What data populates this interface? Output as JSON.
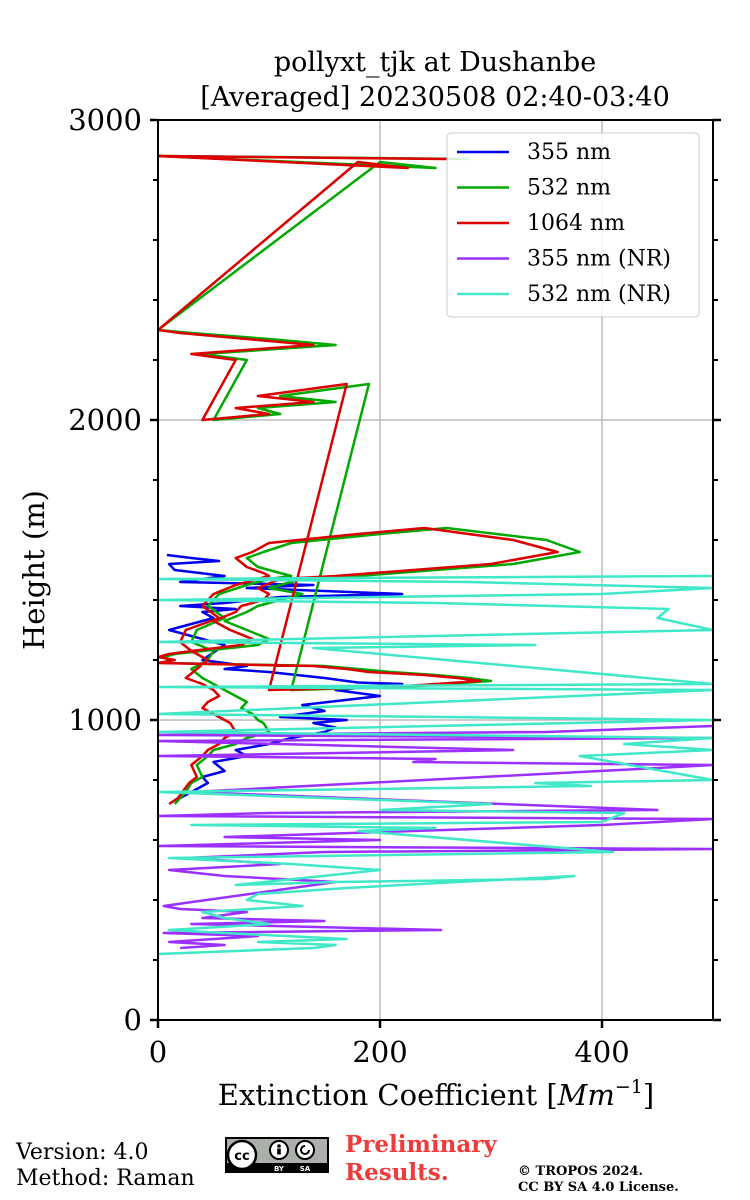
{
  "chart_data": {
    "type": "line",
    "title": [
      "pollyxt_tjk at Dushanbe",
      "[Averaged] 20230508 02:40-03:40"
    ],
    "xlabel": "Extinction Coefficient [$Mm^{-1}$]",
    "xlabel_parts": {
      "prefix": "Extinction Coefficient [",
      "var": "Mm",
      "sup": "−1",
      "suffix": "]"
    },
    "ylabel": "Height (m)",
    "xlim": [
      0,
      500
    ],
    "ylim": [
      0,
      3000
    ],
    "xticks": [
      0,
      200,
      400
    ],
    "yticks": [
      0,
      1000,
      2000,
      3000
    ],
    "grid": true,
    "legend_placement": "top-right",
    "series": [
      {
        "name": "355 nm",
        "color": "#0000ee",
        "x": [
          20,
          30,
          45,
          40,
          60,
          50,
          80,
          70,
          100,
          120,
          150,
          160,
          140,
          170,
          110,
          150,
          130,
          200,
          160,
          220,
          180,
          150,
          100,
          60,
          80,
          40,
          60,
          10,
          50,
          40,
          70,
          20,
          60,
          110,
          220,
          80,
          140,
          20,
          60,
          15,
          10,
          55,
          30,
          8
        ],
        "y": [
          740,
          760,
          790,
          810,
          830,
          860,
          880,
          900,
          920,
          940,
          960,
          975,
          990,
          1000,
          1010,
          1030,
          1050,
          1080,
          1100,
          1120,
          1125,
          1140,
          1160,
          1170,
          1180,
          1200,
          1250,
          1300,
          1340,
          1360,
          1370,
          1380,
          1390,
          1410,
          1420,
          1440,
          1450,
          1460,
          1480,
          1500,
          1520,
          1530,
          1540,
          1550
        ]
      },
      {
        "name": "532 nm",
        "color": "#00aa00",
        "x": [
          15,
          20,
          25,
          30,
          40,
          35,
          45,
          50,
          70,
          80,
          100,
          95,
          90,
          85,
          75,
          80,
          70,
          60,
          50,
          40,
          30,
          45,
          50,
          30,
          35,
          60,
          45,
          55,
          80,
          100,
          120,
          110,
          90,
          80,
          95,
          120,
          200,
          260,
          350,
          380,
          320,
          250,
          180,
          130,
          100,
          130,
          110,
          90,
          80,
          60,
          80,
          100,
          90,
          40,
          15,
          5,
          10,
          5,
          150,
          180,
          210,
          250,
          280,
          300,
          260,
          220,
          120,
          190,
          150,
          110,
          160,
          90,
          110,
          50,
          80,
          40,
          160,
          100,
          30,
          0,
          200,
          250,
          0,
          280
        ],
        "y": [
          720,
          740,
          760,
          790,
          810,
          850,
          880,
          900,
          920,
          940,
          960,
          990,
          1000,
          1020,
          1040,
          1060,
          1080,
          1100,
          1120,
          1140,
          1170,
          1200,
          1230,
          1260,
          1300,
          1340,
          1380,
          1420,
          1450,
          1470,
          1480,
          1490,
          1510,
          1540,
          1560,
          1590,
          1620,
          1640,
          1600,
          1560,
          1520,
          1500,
          1480,
          1470,
          1440,
          1420,
          1400,
          1380,
          1360,
          1330,
          1300,
          1270,
          1250,
          1230,
          1220,
          1210,
          1200,
          1190,
          1180,
          1170,
          1160,
          1150,
          1140,
          1130,
          1120,
          1110,
          1100,
          2120,
          2100,
          2080,
          2060,
          2040,
          2020,
          2000,
          2200,
          2220,
          2250,
          2270,
          2290,
          2300,
          2860,
          2840,
          2880,
          2870
        ]
      },
      {
        "name": "1064 nm",
        "color": "#dd0000",
        "x": [
          10,
          18,
          22,
          28,
          35,
          30,
          40,
          45,
          55,
          60,
          70,
          65,
          60,
          50,
          40,
          45,
          55,
          50,
          40,
          25,
          35,
          45,
          30,
          20,
          25,
          55,
          40,
          50,
          70,
          90,
          100,
          95,
          80,
          70,
          85,
          100,
          180,
          240,
          320,
          360,
          300,
          230,
          160,
          110,
          90,
          100,
          95,
          75,
          70,
          50,
          65,
          85,
          75,
          30,
          10,
          0,
          15,
          0,
          140,
          170,
          190,
          240,
          270,
          290,
          250,
          210,
          100,
          170,
          130,
          90,
          140,
          70,
          100,
          40,
          70,
          30,
          140,
          80,
          20,
          0,
          180,
          225,
          0,
          260
        ],
        "y": [
          720,
          740,
          760,
          790,
          810,
          850,
          880,
          900,
          920,
          940,
          960,
          990,
          1000,
          1020,
          1040,
          1060,
          1080,
          1100,
          1120,
          1140,
          1170,
          1200,
          1230,
          1260,
          1300,
          1340,
          1380,
          1420,
          1450,
          1470,
          1480,
          1490,
          1510,
          1540,
          1560,
          1590,
          1620,
          1640,
          1600,
          1560,
          1520,
          1500,
          1480,
          1470,
          1440,
          1420,
          1400,
          1380,
          1360,
          1330,
          1300,
          1270,
          1250,
          1230,
          1220,
          1210,
          1200,
          1190,
          1180,
          1170,
          1160,
          1150,
          1140,
          1130,
          1120,
          1110,
          1100,
          2120,
          2100,
          2080,
          2060,
          2040,
          2020,
          2000,
          2200,
          2220,
          2250,
          2270,
          2290,
          2300,
          2860,
          2840,
          2880,
          2870
        ]
      },
      {
        "name": "355 nm (NR)",
        "color": "#9b30ff",
        "x": [
          20,
          60,
          10,
          90,
          5,
          255,
          30,
          150,
          40,
          80,
          20,
          5,
          160,
          60,
          10,
          110,
          25,
          150,
          500,
          0,
          200,
          60,
          400,
          500,
          0,
          100,
          450,
          30,
          450,
          500,
          230,
          250,
          0,
          320,
          0,
          500,
          0,
          350,
          500
        ],
        "y": [
          240,
          250,
          260,
          280,
          290,
          300,
          320,
          330,
          340,
          360,
          370,
          380,
          460,
          480,
          500,
          520,
          540,
          560,
          570,
          580,
          600,
          610,
          650,
          670,
          680,
          690,
          700,
          760,
          840,
          850,
          860,
          870,
          880,
          900,
          930,
          940,
          950,
          960,
          980
        ]
      },
      {
        "name": "532 nm (NR)",
        "color": "#40e8c8",
        "x": [
          0,
          140,
          160,
          90,
          170,
          60,
          10,
          100,
          60,
          40,
          130,
          80,
          90,
          170,
          270,
          375,
          350,
          160,
          70,
          200,
          120,
          10,
          410,
          180,
          250,
          30,
          400,
          420,
          200,
          300,
          150,
          0,
          390,
          340,
          500,
          380,
          500,
          420,
          500,
          0,
          500,
          260,
          0,
          500,
          0,
          500,
          140,
          340,
          0,
          500,
          450,
          460,
          250,
          0,
          400,
          500,
          280,
          0,
          500
        ],
        "y": [
          220,
          240,
          250,
          260,
          270,
          290,
          300,
          320,
          340,
          360,
          380,
          400,
          420,
          440,
          460,
          480,
          470,
          460,
          450,
          500,
          520,
          540,
          560,
          630,
          640,
          650,
          660,
          690,
          700,
          720,
          740,
          760,
          780,
          790,
          800,
          880,
          900,
          920,
          940,
          960,
          1000,
          1010,
          1020,
          1100,
          1110,
          1120,
          1240,
          1250,
          1260,
          1300,
          1340,
          1370,
          1390,
          1400,
          1420,
          1440,
          1460,
          1470,
          1480
        ]
      }
    ]
  },
  "footer": {
    "version": "Version: 4.0",
    "method": "Method: Raman",
    "preliminary_line1": "Preliminary",
    "preliminary_line2": "Results.",
    "copyright_line1": "© TROPOS 2024.",
    "copyright_line2": "CC BY SA 4.0 License.",
    "cc_logo": "creative-commons-by-sa-badge"
  }
}
